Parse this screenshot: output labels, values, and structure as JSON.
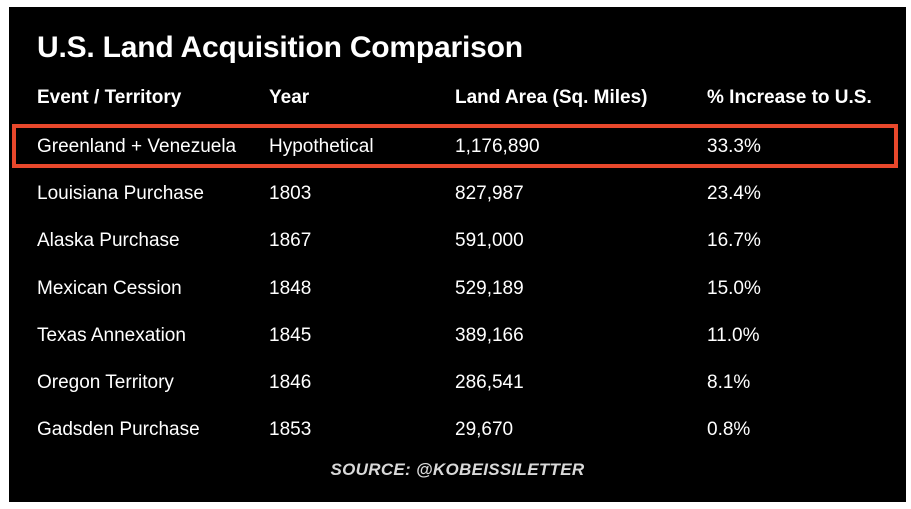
{
  "chart_data": {
    "type": "table",
    "title": "U.S. Land Acquisition Comparison",
    "columns": [
      "Event / Territory",
      "Year",
      "Land Area (Sq. Miles)",
      "% Increase to U.S."
    ],
    "rows": [
      [
        "Greenland + Venezuela",
        "Hypothetical",
        "1,176,890",
        "33.3%"
      ],
      [
        "Louisiana Purchase",
        "1803",
        "827,987",
        "23.4%"
      ],
      [
        "Alaska Purchase",
        "1867",
        "591,000",
        "16.7%"
      ],
      [
        "Mexican Cession",
        "1848",
        "529,189",
        "15.0%"
      ],
      [
        "Texas Annexation",
        "1845",
        "389,166",
        "11.0%"
      ],
      [
        "Oregon Territory",
        "1846",
        "286,541",
        "8.1%"
      ],
      [
        "Gadsden Purchase",
        "1853",
        "29,670",
        "0.8%"
      ]
    ],
    "highlighted_row": 0,
    "source": "SOURCE: @KOBEISSILETTER"
  },
  "colors": {
    "background": "#000000",
    "text": "#ffffff",
    "highlight_border": "#e8472b"
  }
}
